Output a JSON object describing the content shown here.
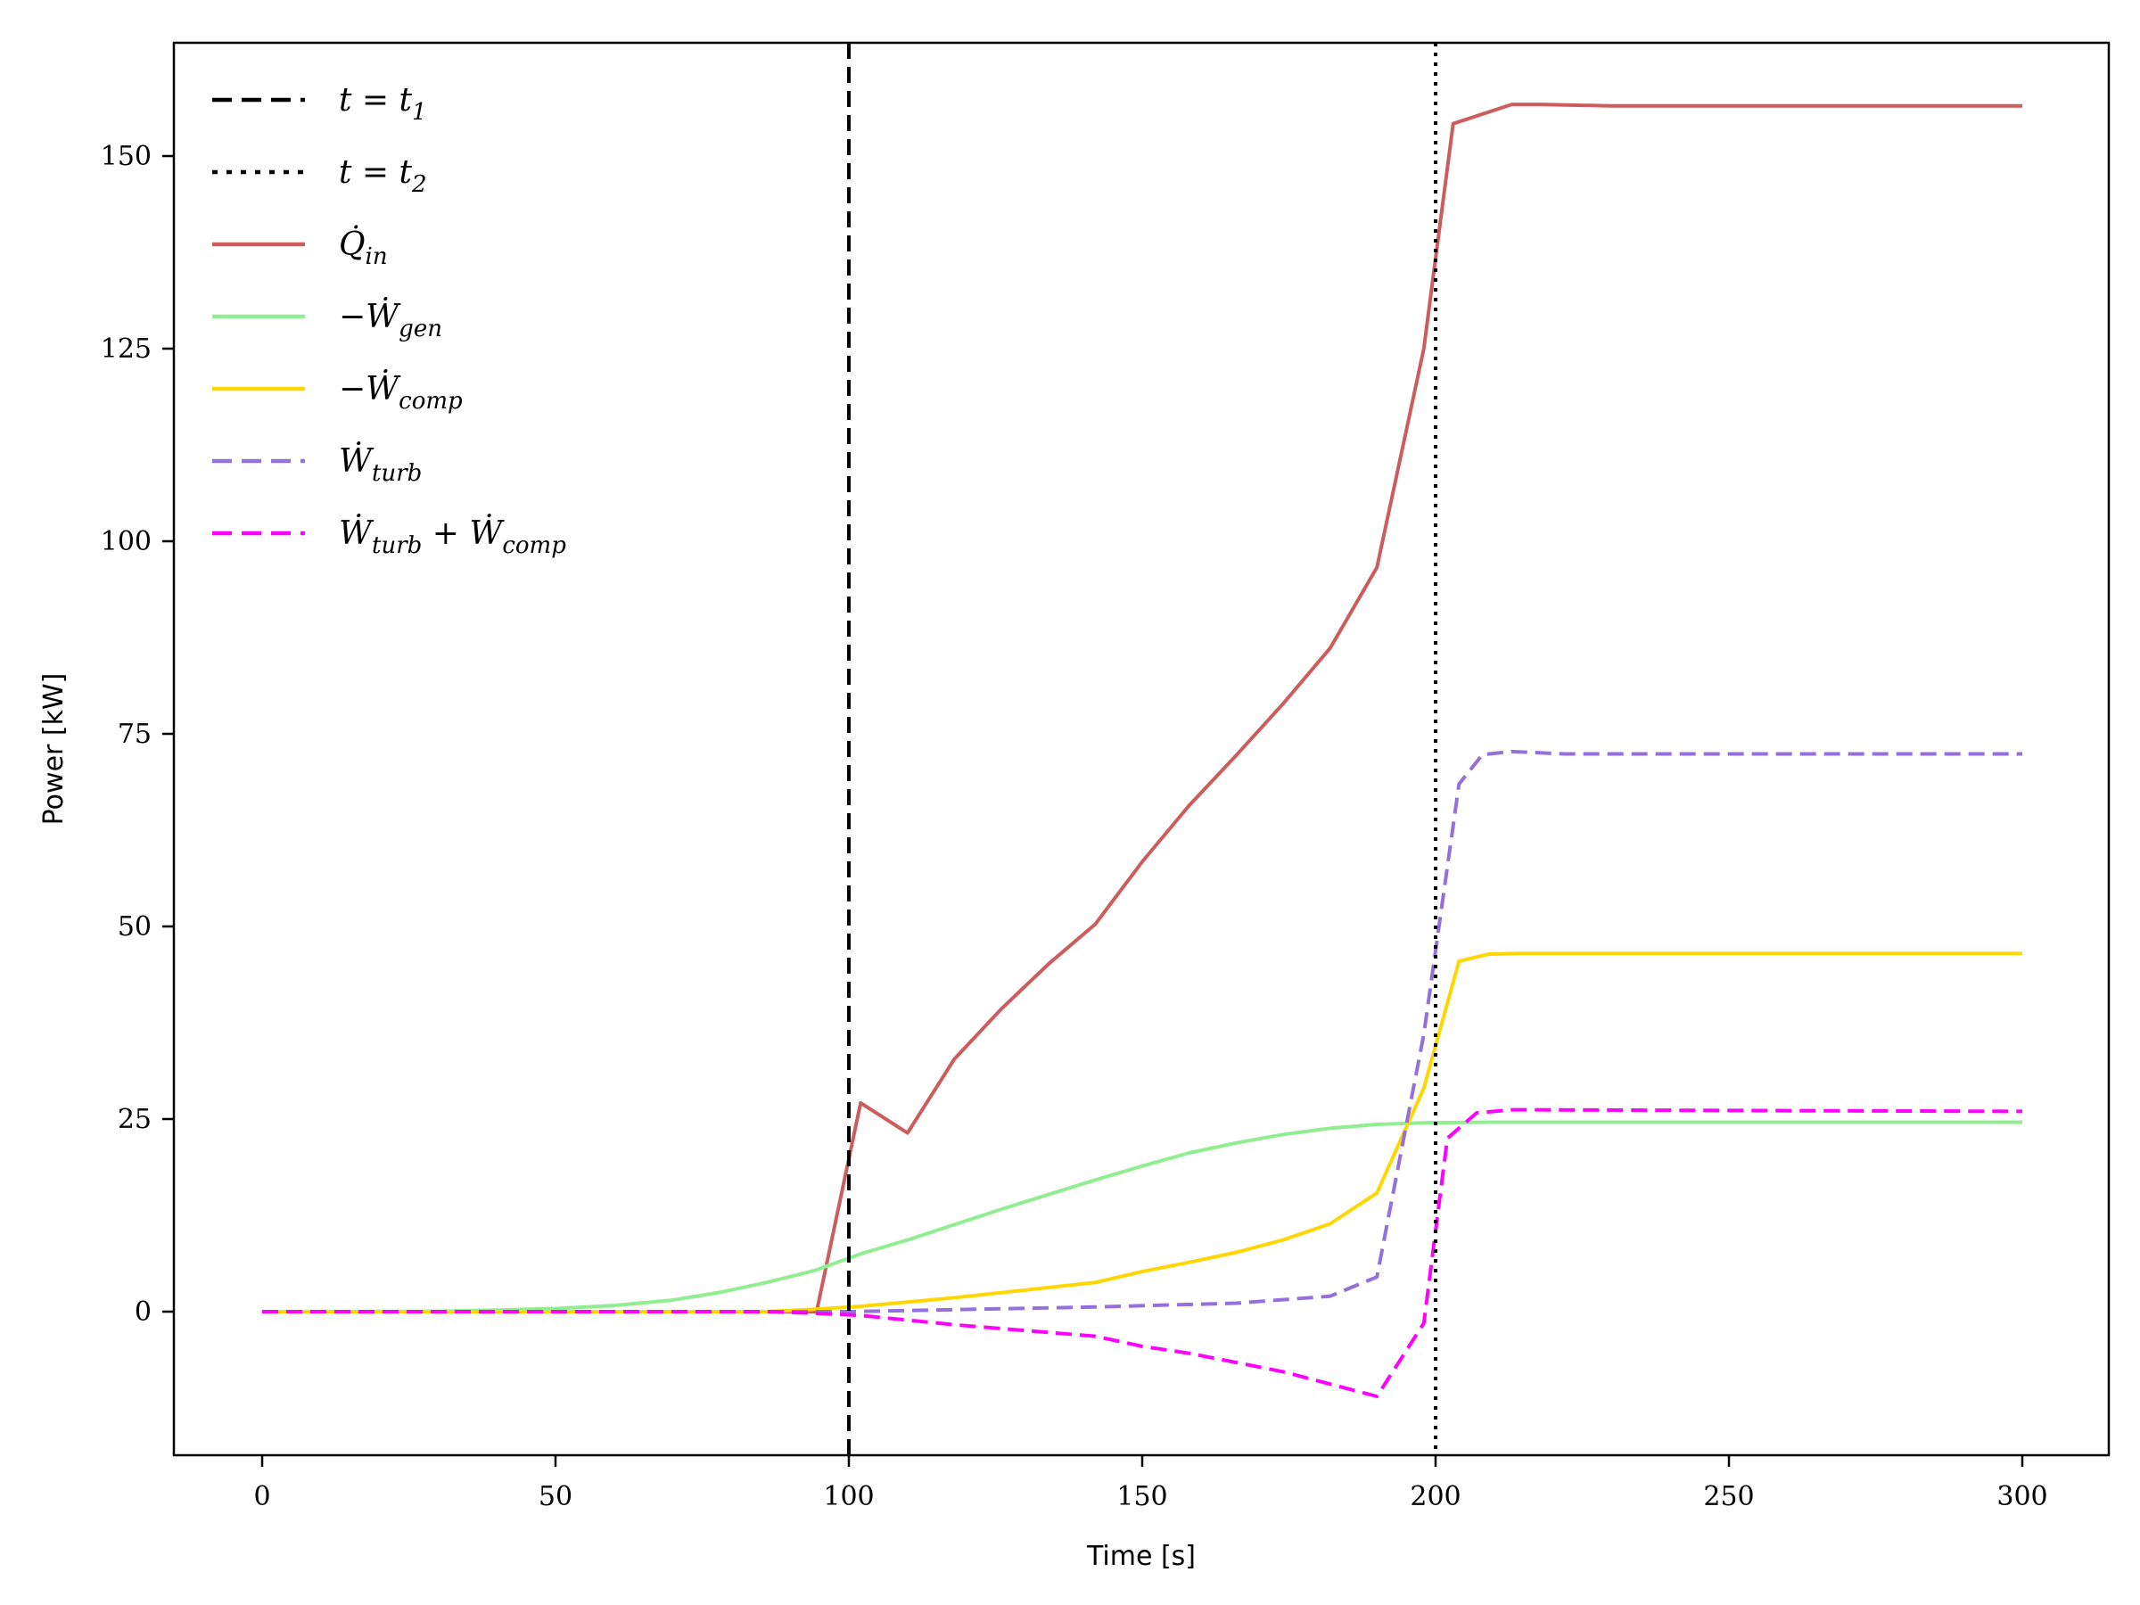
{
  "chart_data": {
    "type": "line",
    "title": "",
    "xlabel": "Time [s]",
    "ylabel": "Power [kW]",
    "xlim": [
      -15,
      316
    ],
    "ylim": [
      -20,
      165
    ],
    "xticks": [
      0,
      50,
      100,
      150,
      200,
      250,
      300
    ],
    "yticks": [
      0,
      25,
      50,
      75,
      100,
      125,
      150
    ],
    "grid": false,
    "legend_position": "upper left",
    "vlines": [
      {
        "name": "t = t1",
        "x": 100,
        "style": "dashed",
        "color": "#000000"
      },
      {
        "name": "t = t2",
        "x": 200,
        "style": "dotted",
        "color": "#000000"
      }
    ],
    "series": [
      {
        "name": "Q̇_in",
        "color": "#cd5c5c",
        "style": "solid",
        "points": [
          [
            0,
            0
          ],
          [
            94.5,
            0
          ],
          [
            102,
            27.1
          ],
          [
            110,
            23.2
          ],
          [
            118,
            32.8
          ],
          [
            126,
            39.3
          ],
          [
            134,
            45.1
          ],
          [
            142,
            50.3
          ],
          [
            150,
            58.4
          ],
          [
            158,
            65.7
          ],
          [
            166,
            72.2
          ],
          [
            174,
            78.9
          ],
          [
            182,
            86.1
          ],
          [
            190,
            96.6
          ],
          [
            198,
            125
          ],
          [
            203,
            154.2
          ],
          [
            213,
            156.7
          ],
          [
            218,
            156.7
          ],
          [
            230,
            156.5
          ],
          [
            300,
            156.5
          ]
        ]
      },
      {
        "name": "−Ẇ_gen",
        "color": "#90ee90",
        "style": "solid",
        "points": [
          [
            0,
            0
          ],
          [
            30,
            0.05
          ],
          [
            40,
            0.2
          ],
          [
            50,
            0.4
          ],
          [
            60,
            0.8
          ],
          [
            70,
            1.5
          ],
          [
            78,
            2.5
          ],
          [
            86,
            3.8
          ],
          [
            94,
            5.3
          ],
          [
            102,
            7.5
          ],
          [
            110,
            9.3
          ],
          [
            118,
            11.3
          ],
          [
            126,
            13.3
          ],
          [
            134,
            15.2
          ],
          [
            142,
            17.1
          ],
          [
            150,
            18.9
          ],
          [
            158,
            20.6
          ],
          [
            166,
            21.9
          ],
          [
            174,
            23.0
          ],
          [
            182,
            23.8
          ],
          [
            190,
            24.3
          ],
          [
            198,
            24.5
          ],
          [
            210,
            24.6
          ],
          [
            300,
            24.6
          ]
        ]
      },
      {
        "name": "−Ẇ_comp",
        "color": "#ffd700",
        "style": "solid",
        "points": [
          [
            0,
            0
          ],
          [
            86,
            0
          ],
          [
            94,
            0.3
          ],
          [
            102,
            0.7
          ],
          [
            118,
            1.8
          ],
          [
            142,
            3.8
          ],
          [
            150,
            5.2
          ],
          [
            158,
            6.4
          ],
          [
            166,
            7.7
          ],
          [
            174,
            9.3
          ],
          [
            182,
            11.4
          ],
          [
            190,
            15.4
          ],
          [
            198,
            29.0
          ],
          [
            204,
            45.5
          ],
          [
            209,
            46.4
          ],
          [
            214,
            46.5
          ],
          [
            300,
            46.5
          ]
        ]
      },
      {
        "name": "Ẇ_turb",
        "color": "#9370db",
        "style": "dashed",
        "points": [
          [
            0,
            0
          ],
          [
            100,
            0
          ],
          [
            142,
            0.6
          ],
          [
            166,
            1.1
          ],
          [
            182,
            2.0
          ],
          [
            190,
            4.5
          ],
          [
            198,
            36.0
          ],
          [
            204,
            68.5
          ],
          [
            208,
            72.3
          ],
          [
            213,
            72.7
          ],
          [
            222,
            72.4
          ],
          [
            300,
            72.4
          ]
        ]
      },
      {
        "name": "Ẇ_turb + Ẇ_comp",
        "color": "#ff00ff",
        "style": "dashed",
        "points": [
          [
            0,
            0
          ],
          [
            86,
            0
          ],
          [
            94,
            -0.2
          ],
          [
            102,
            -0.5
          ],
          [
            118,
            -1.7
          ],
          [
            142,
            -3.2
          ],
          [
            150,
            -4.5
          ],
          [
            158,
            -5.4
          ],
          [
            166,
            -6.6
          ],
          [
            174,
            -7.8
          ],
          [
            182,
            -9.4
          ],
          [
            190,
            -11.0
          ],
          [
            198,
            -1.5
          ],
          [
            202,
            22.5
          ],
          [
            207,
            25.8
          ],
          [
            213,
            26.2
          ],
          [
            300,
            26.0
          ]
        ]
      }
    ]
  },
  "legend": {
    "items": [
      {
        "base": "t = t",
        "sub": "1",
        "style": "dashed",
        "color": "#000000"
      },
      {
        "base": "t = t",
        "sub": "2",
        "style": "dotted",
        "color": "#000000"
      },
      {
        "base": "Q̇",
        "sub": "in",
        "style": "solid",
        "color": "#cd5c5c"
      },
      {
        "base": "−Ẇ",
        "sub": "gen",
        "style": "solid",
        "color": "#90ee90"
      },
      {
        "base": "−Ẇ",
        "sub": "comp",
        "style": "solid",
        "color": "#ffd700"
      },
      {
        "base": "Ẇ",
        "sub": "turb",
        "style": "dashed",
        "color": "#9370db"
      },
      {
        "base": "Ẇ",
        "sub": "turb",
        "base2": " + Ẇ",
        "sub2": "comp",
        "style": "dashed",
        "color": "#ff00ff"
      }
    ]
  },
  "axes": {
    "xlabel": "Time [s]",
    "ylabel": "Power [kW]"
  }
}
